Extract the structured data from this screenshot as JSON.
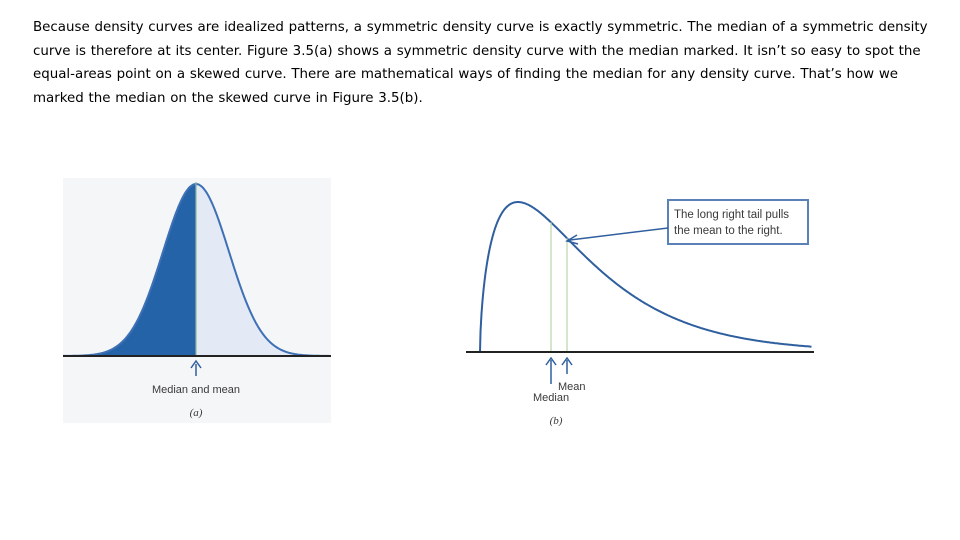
{
  "paragraph": "Because density curves are idealized patterns, a symmetric density curve is exactly symmetric. The median of a symmetric density curve is therefore at its center. Figure 3.5(a) shows a symmetric density curve with the median marked. It isn’t so easy to spot the equal-areas point on a skewed curve. There are mathematical ways of finding the median for any density curve. That’s how we marked the median on the skewed curve in Figure 3.5(b).",
  "figure_a": {
    "marker_label": "Median and mean",
    "caption": "(a)",
    "left_fill": "#2563a8",
    "right_fill": "#e3e9f5",
    "curve_color": "#3d70b4"
  },
  "figure_b": {
    "callout_line1": "The long right tail pulls",
    "callout_line2": "the mean to the right.",
    "median_label": "Median",
    "mean_label": "Mean",
    "caption": "(b)",
    "curve_color": "#2f5f9e",
    "marker_line_color": "#bcd8b0"
  }
}
